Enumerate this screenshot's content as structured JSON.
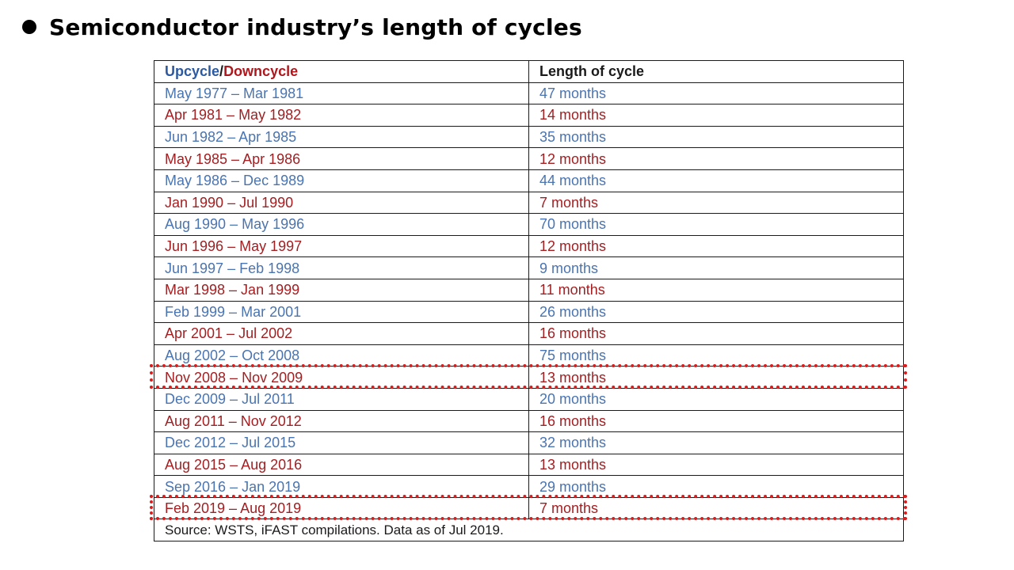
{
  "title": "Semiconductor industry’s length of cycles",
  "table": {
    "header": {
      "upcycle": "Upcycle",
      "slash": "/",
      "downcycle": "Downcycle",
      "length": "Length of cycle"
    },
    "rows": [
      {
        "period": "May 1977 – Mar 1981",
        "length": "47 months",
        "type": "upcycle"
      },
      {
        "period": "Apr 1981 – May 1982",
        "length": "14 months",
        "type": "downcycle"
      },
      {
        "period": "Jun 1982 – Apr 1985",
        "length": "35 months",
        "type": "upcycle"
      },
      {
        "period": "May 1985 – Apr 1986",
        "length": "12 months",
        "type": "downcycle"
      },
      {
        "period": "May 1986 – Dec 1989",
        "length": "44 months",
        "type": "upcycle"
      },
      {
        "period": "Jan 1990 – Jul 1990",
        "length": "7 months",
        "type": "downcycle"
      },
      {
        "period": "Aug 1990 – May 1996",
        "length": "70 months",
        "type": "upcycle"
      },
      {
        "period": "Jun 1996 – May 1997",
        "length": "12 months",
        "type": "downcycle"
      },
      {
        "period": "Jun 1997 – Feb 1998",
        "length": "9 months",
        "type": "upcycle"
      },
      {
        "period": "Mar 1998 – Jan 1999",
        "length": "11 months",
        "type": "downcycle"
      },
      {
        "period": "Feb 1999 – Mar 2001",
        "length": "26 months",
        "type": "upcycle"
      },
      {
        "period": "Apr 2001 – Jul 2002",
        "length": "16 months",
        "type": "downcycle"
      },
      {
        "period": "Aug 2002 – Oct 2008",
        "length": "75 months",
        "type": "upcycle"
      },
      {
        "period": "Nov 2008 – Nov 2009",
        "length": "13 months",
        "type": "downcycle",
        "highlighted": true
      },
      {
        "period": "Dec 2009 – Jul 2011",
        "length": "20 months",
        "type": "upcycle"
      },
      {
        "period": "Aug 2011 – Nov 2012",
        "length": "16 months",
        "type": "downcycle"
      },
      {
        "period": "Dec 2012 – Jul 2015",
        "length": "32 months",
        "type": "upcycle"
      },
      {
        "period": "Aug 2015 – Aug 2016",
        "length": "13 months",
        "type": "downcycle"
      },
      {
        "period": "Sep 2016 – Jan 2019",
        "length": "29 months",
        "type": "upcycle"
      },
      {
        "period": "Feb 2019 – Aug 2019",
        "length": "7 months",
        "type": "downcycle",
        "highlighted": true
      }
    ],
    "source": "Source: WSTS, iFAST compilations. Data as of Jul 2019."
  },
  "colors": {
    "upcycle": "#4a74b0",
    "downcycle": "#a21f22",
    "highlight": "#e21a1a"
  }
}
